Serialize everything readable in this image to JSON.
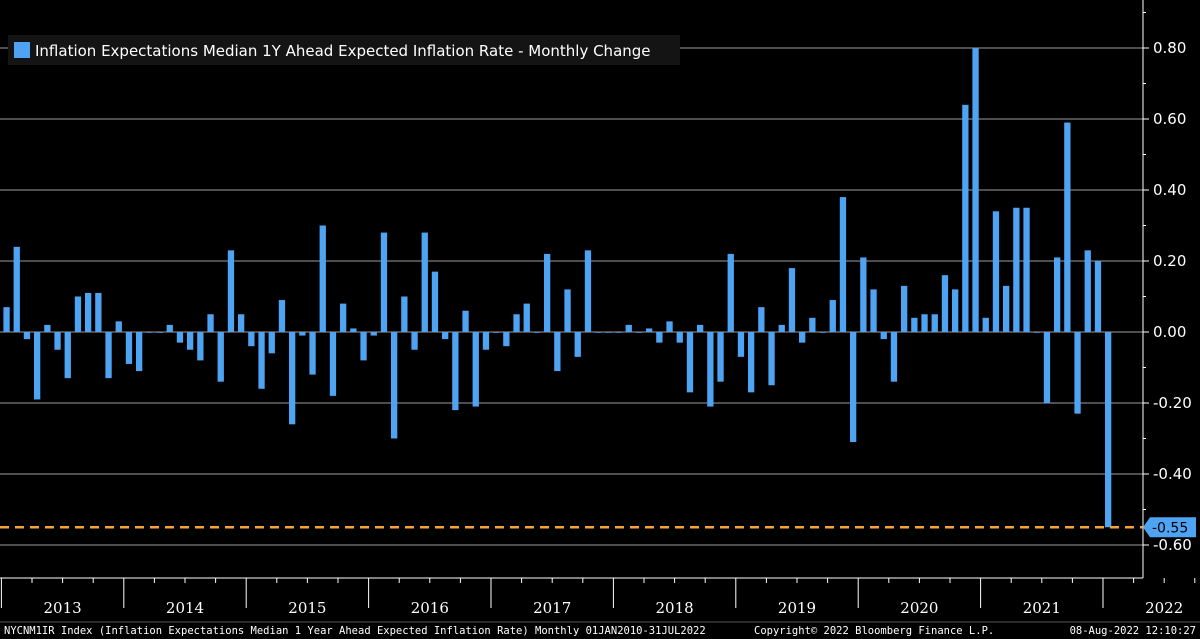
{
  "chart_data": {
    "type": "bar",
    "series_name": "Inflation Expectations Median 1Y Ahead Expected Inflation Rate - Monthly Change",
    "colors": {
      "bar": "#4ea3f2",
      "reference_line": "#f7a23b",
      "grid": "#cfcfcf",
      "background": "#000000"
    },
    "ylim": [
      -0.62,
      0.92
    ],
    "yticks": [
      -0.6,
      -0.4,
      -0.2,
      0.0,
      0.2,
      0.4,
      0.6,
      0.8
    ],
    "ytick_labels": [
      "-0.60",
      "-0.40",
      "-0.20",
      "0.00",
      "0.20",
      "0.40",
      "0.60",
      "0.80"
    ],
    "year_labels": [
      "2013",
      "2014",
      "2015",
      "2016",
      "2017",
      "2018",
      "2019",
      "2020",
      "2021",
      "2022"
    ],
    "first_month": "2013-01",
    "values": [
      0.07,
      0.24,
      -0.02,
      -0.19,
      0.02,
      -0.05,
      -0.13,
      0.1,
      0.11,
      0.11,
      -0.13,
      0.03,
      -0.09,
      -0.11,
      0.0,
      0.0,
      0.02,
      -0.03,
      -0.05,
      -0.08,
      0.05,
      -0.14,
      0.23,
      0.05,
      -0.04,
      -0.16,
      -0.06,
      0.09,
      -0.26,
      -0.01,
      -0.12,
      0.3,
      -0.18,
      0.08,
      0.01,
      -0.08,
      -0.01,
      0.28,
      -0.3,
      0.1,
      -0.05,
      0.28,
      0.17,
      -0.02,
      -0.22,
      0.06,
      -0.21,
      -0.05,
      0.0,
      -0.04,
      0.05,
      0.08,
      0.0,
      0.22,
      -0.11,
      0.12,
      -0.07,
      0.23,
      0.0,
      0.0,
      0.0,
      0.02,
      0.0,
      0.01,
      -0.03,
      0.03,
      -0.03,
      -0.17,
      0.02,
      -0.21,
      -0.14,
      0.22,
      -0.07,
      -0.17,
      0.07,
      -0.15,
      0.02,
      0.18,
      -0.03,
      0.04,
      0.0,
      0.09,
      0.38,
      -0.31,
      0.21,
      0.12,
      -0.02,
      -0.14,
      0.13,
      0.04,
      0.05,
      0.05,
      0.16,
      0.12,
      0.64,
      0.8,
      0.04,
      0.34,
      0.13,
      0.35,
      0.35,
      0.0,
      -0.2,
      0.21,
      0.59,
      -0.23,
      0.23,
      0.2,
      -0.55
    ],
    "reference_line": {
      "value": -0.55,
      "label": "-0.55"
    }
  },
  "footer": {
    "left": "NYCNM1IR Index (Inflation Expectations Median 1 Year Ahead Expected Inflation Rate)  Monthly 01JAN2010-31JUL2022",
    "center": "Copyright© 2022 Bloomberg Finance L.P.",
    "right": "08-Aug-2022 12:10:27"
  }
}
